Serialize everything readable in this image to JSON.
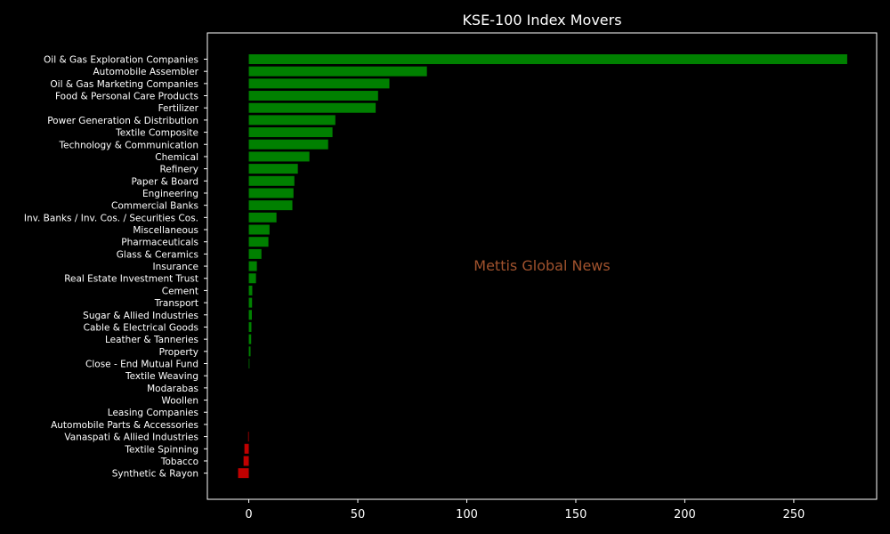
{
  "chart_data": {
    "type": "bar",
    "orientation": "horizontal",
    "title": "KSE-100 Index Movers",
    "watermark": "Mettis Global News",
    "xlim": [
      -19,
      288
    ],
    "xticks": [
      0,
      50,
      100,
      150,
      200,
      250
    ],
    "grid": false,
    "colors": {
      "positive": "#008000",
      "negative": "#c00000",
      "background": "#000000",
      "text": "#ffffff",
      "watermark": "#a0522d"
    },
    "categories": [
      "Oil & Gas Exploration Companies",
      "Automobile Assembler",
      "Oil & Gas Marketing Companies",
      "Food & Personal Care Products",
      "Fertilizer",
      "Power Generation & Distribution",
      "Textile Composite",
      "Technology & Communication",
      "Chemical",
      "Refinery",
      "Paper & Board",
      "Engineering",
      "Commercial Banks",
      "Inv. Banks / Inv. Cos. / Securities Cos.",
      "Miscellaneous",
      "Pharmaceuticals",
      "Glass & Ceramics",
      "Insurance",
      "Real Estate Investment Trust",
      "Cement",
      "Transport",
      "Sugar & Allied Industries",
      "Cable & Electrical Goods",
      "Leather & Tanneries",
      "Property",
      "Close - End Mutual Fund",
      "Textile Weaving",
      "Modarabas",
      "Woollen",
      "Leasing Companies",
      "Automobile Parts & Accessories",
      "Vanaspati & Allied Industries",
      "Textile Spinning",
      "Tobacco",
      "Synthetic & Rayon"
    ],
    "values": [
      274.5,
      81.7,
      64.5,
      59.3,
      58.2,
      39.7,
      38.4,
      36.4,
      27.8,
      22.5,
      20.9,
      20.5,
      20.0,
      12.7,
      9.5,
      9.0,
      5.8,
      3.7,
      3.3,
      1.6,
      1.5,
      1.4,
      1.2,
      1.1,
      0.8,
      0.3,
      0.0,
      0.0,
      0.0,
      0.0,
      0.0,
      -0.3,
      -2.0,
      -2.4,
      -4.9
    ]
  }
}
